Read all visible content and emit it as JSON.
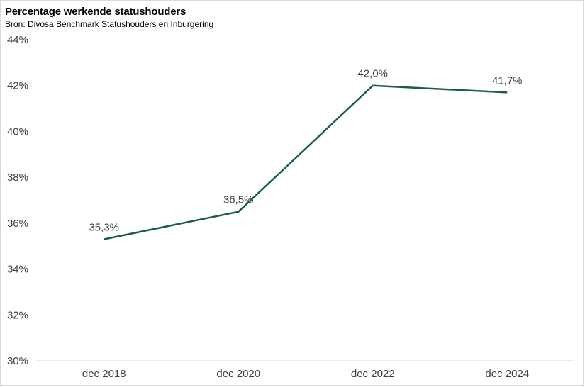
{
  "chart_data": {
    "type": "line",
    "title": "Percentage werkende statushouders",
    "subtitle": "Bron: Divosa Benchmark Statushouders en Inburgering",
    "categories": [
      "dec 2018",
      "dec 2020",
      "dec 2022",
      "dec 2024"
    ],
    "series": [
      {
        "values": [
          35.3,
          36.5,
          42.0,
          41.7
        ],
        "color": "#1b5e48"
      }
    ],
    "data_labels": [
      "35,3%",
      "36,5%",
      "42,0%",
      "41,7%"
    ],
    "yticks": [
      "30%",
      "32%",
      "34%",
      "36%",
      "38%",
      "40%",
      "42%",
      "44%"
    ],
    "ylim": [
      30,
      44
    ],
    "grid": false,
    "legend": "none"
  }
}
